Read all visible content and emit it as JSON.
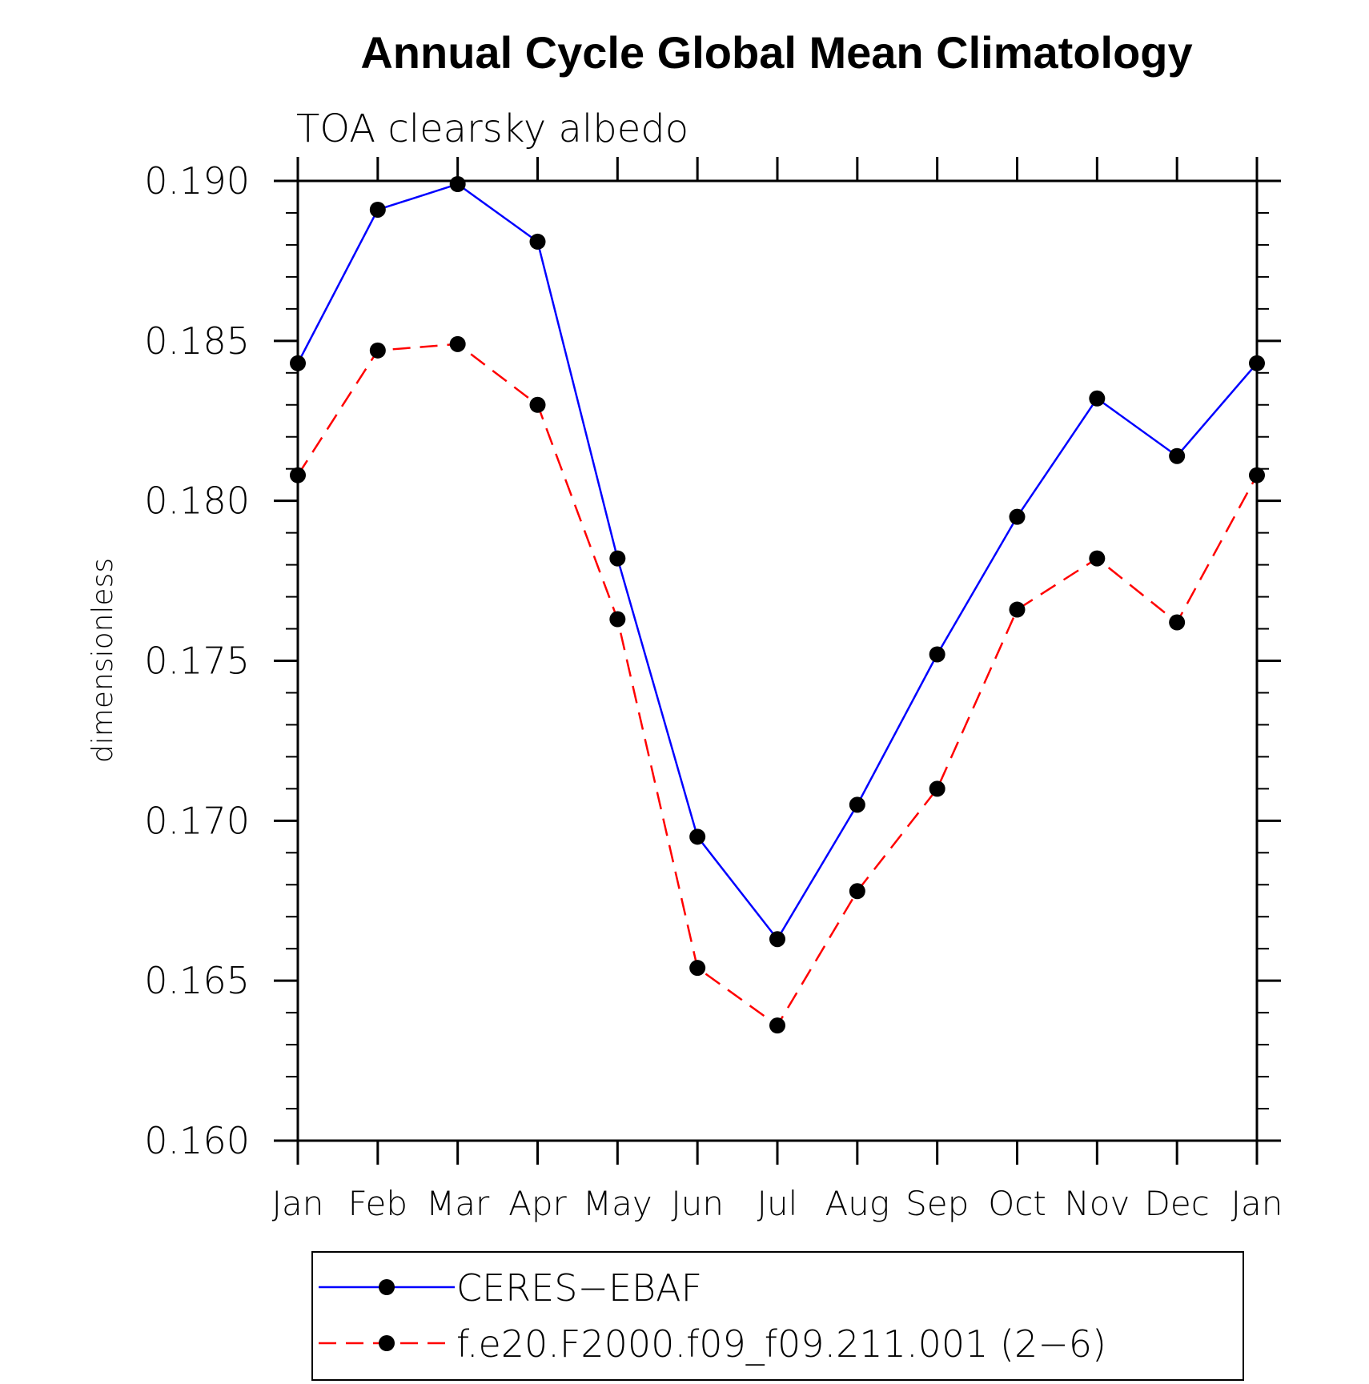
{
  "chart_data": {
    "type": "line",
    "title": "Annual Cycle Global Mean Climatology",
    "subtitle": "TOA clearsky albedo",
    "xlabel": "",
    "ylabel": "dimensionless",
    "categories": [
      "Jan",
      "Feb",
      "Mar",
      "Apr",
      "May",
      "Jun",
      "Jul",
      "Aug",
      "Sep",
      "Oct",
      "Nov",
      "Dec",
      "Jan"
    ],
    "ylim": [
      0.16,
      0.19
    ],
    "yticks": [
      "0.160",
      "0.165",
      "0.170",
      "0.175",
      "0.180",
      "0.185",
      "0.190"
    ],
    "grid": false,
    "legend_position": "bottom",
    "series": [
      {
        "name": "CERES−EBAF",
        "color": "#0000ff",
        "dash": "solid",
        "values": [
          0.1843,
          0.1891,
          0.1899,
          0.1881,
          0.1782,
          0.1695,
          0.1663,
          0.1705,
          0.1752,
          0.1795,
          0.1832,
          0.1814,
          0.1843
        ]
      },
      {
        "name": "f.e20.F2000.f09_f09.211.001 (2−6)",
        "color": "#ff0000",
        "dash": "dashed",
        "values": [
          0.1808,
          0.1847,
          0.1849,
          0.183,
          0.1763,
          0.1654,
          0.1636,
          0.1678,
          0.171,
          0.1766,
          0.1782,
          0.1762,
          0.1808
        ]
      }
    ]
  }
}
